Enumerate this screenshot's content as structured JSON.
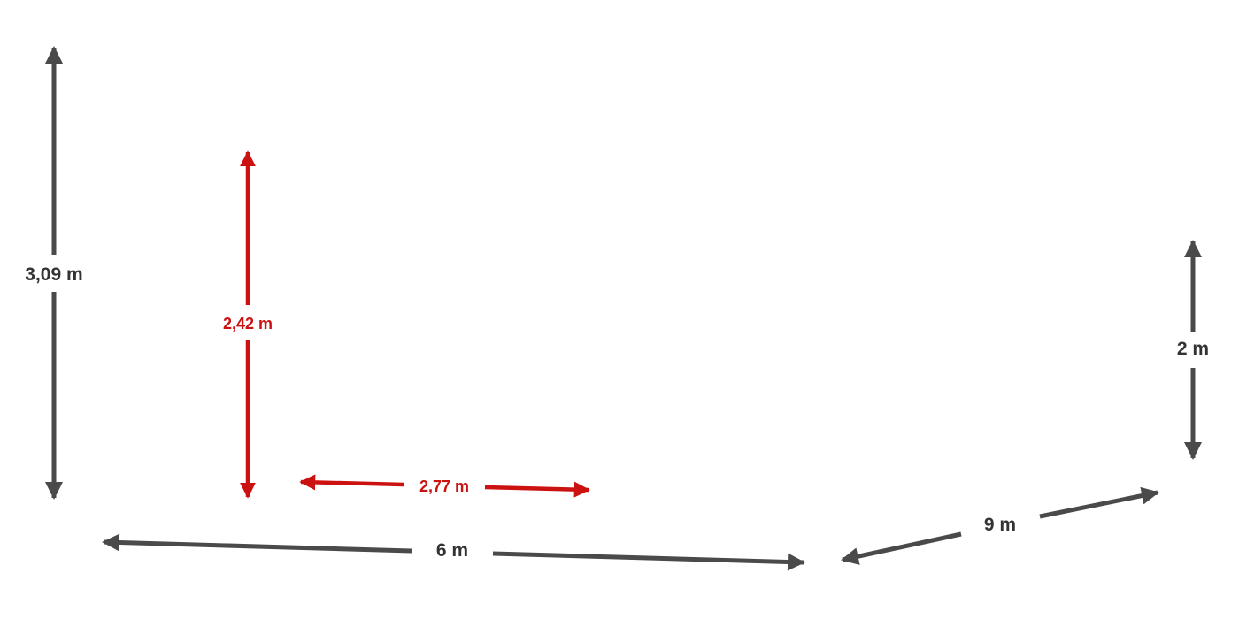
{
  "colors": {
    "primary": "#4a4a4a",
    "accent": "#cc1111",
    "background": "#ffffff"
  },
  "dimensions": {
    "height_left": "3,09 m",
    "height_red": "2,42 m",
    "width_red": "2,77 m",
    "width_front": "6 m",
    "depth_right": "9 m",
    "height_right": "2 m"
  }
}
